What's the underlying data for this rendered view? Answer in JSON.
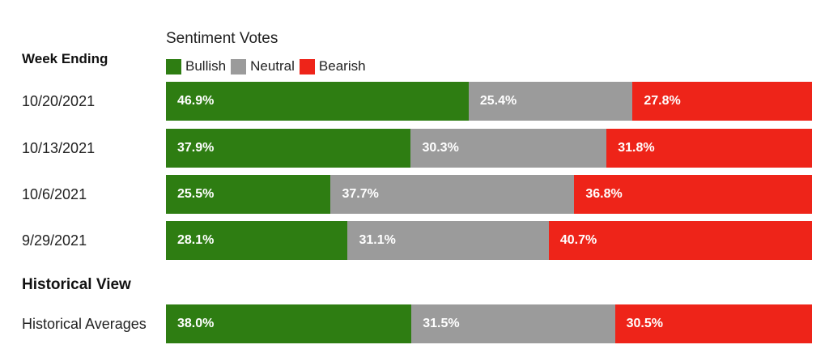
{
  "colors": {
    "bullish": "#2e7d12",
    "neutral": "#9b9b9b",
    "bearish": "#ee2419"
  },
  "chart_data": {
    "type": "bar",
    "stacked": true,
    "orientation": "horizontal",
    "title": "Sentiment Votes",
    "row_header": "Week Ending",
    "legend": [
      "Bullish",
      "Neutral",
      "Bearish"
    ],
    "legend_position": "top-left",
    "rows": [
      {
        "label": "10/20/2021",
        "values": [
          46.9,
          25.4,
          27.8
        ],
        "labels": [
          "46.9%",
          "25.4%",
          "27.8%"
        ]
      },
      {
        "label": "10/13/2021",
        "values": [
          37.9,
          30.3,
          31.8
        ],
        "labels": [
          "37.9%",
          "30.3%",
          "31.8%"
        ]
      },
      {
        "label": "10/6/2021",
        "values": [
          25.5,
          37.7,
          36.8
        ],
        "labels": [
          "25.5%",
          "37.7%",
          "36.8%"
        ]
      },
      {
        "label": "9/29/2021",
        "values": [
          28.1,
          31.1,
          40.7
        ],
        "labels": [
          "28.1%",
          "31.1%",
          "40.7%"
        ]
      }
    ],
    "section_title": "Historical View",
    "historical": {
      "label": "Historical Averages",
      "values": [
        38.0,
        31.5,
        30.5
      ],
      "labels": [
        "38.0%",
        "31.5%",
        "30.5%"
      ]
    }
  }
}
